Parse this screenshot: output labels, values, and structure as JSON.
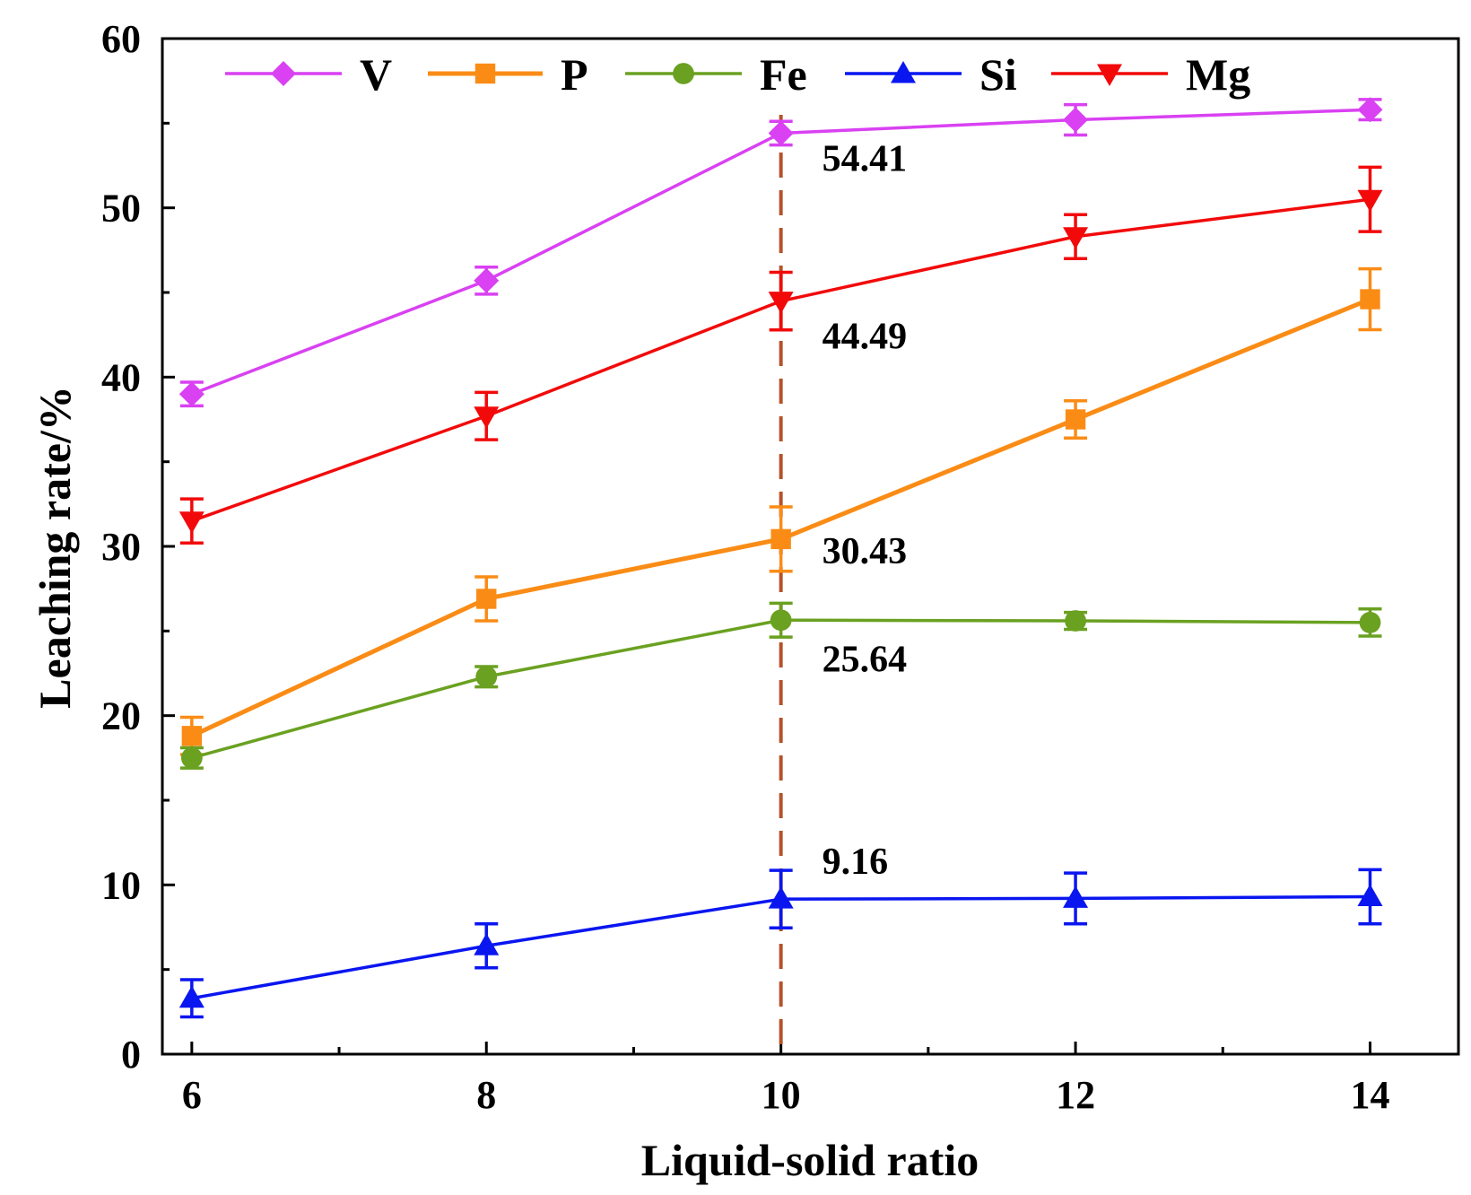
{
  "chart_data": {
    "type": "line",
    "title": "",
    "xlabel": "Liquid-solid ratio",
    "ylabel": "Leaching rate/%",
    "x": [
      6,
      8,
      10,
      12,
      14
    ],
    "xlim": [
      5.8,
      14.6
    ],
    "ylim": [
      0,
      60
    ],
    "xticks": [
      "6",
      "8",
      "10",
      "12",
      "14"
    ],
    "yticks": [
      "0",
      "10",
      "20",
      "30",
      "40",
      "50",
      "60"
    ],
    "grid": false,
    "legend_position": "top",
    "reference_line": {
      "x": 10,
      "color": "#b5532a",
      "style": "dashed"
    },
    "series": [
      {
        "name": "V",
        "color": "#d941f2",
        "marker": "diamond",
        "values": [
          39.0,
          45.7,
          54.41,
          55.2,
          55.8
        ],
        "errors": [
          0.7,
          0.8,
          0.7,
          0.9,
          0.6
        ]
      },
      {
        "name": "P",
        "color": "#fa8c16",
        "marker": "square",
        "values": [
          18.8,
          26.9,
          30.43,
          37.5,
          44.6
        ],
        "errors": [
          1.1,
          1.3,
          1.9,
          1.1,
          1.8
        ]
      },
      {
        "name": "Fe",
        "color": "#6aa121",
        "marker": "circle",
        "values": [
          17.5,
          22.3,
          25.64,
          25.6,
          25.5
        ],
        "errors": [
          0.6,
          0.6,
          1.0,
          0.5,
          0.8
        ]
      },
      {
        "name": "Si",
        "color": "#0a16f0",
        "marker": "triangle-up",
        "values": [
          3.3,
          6.4,
          9.16,
          9.2,
          9.3
        ],
        "errors": [
          1.1,
          1.3,
          1.7,
          1.5,
          1.6
        ]
      },
      {
        "name": "Mg",
        "color": "#f20a0a",
        "marker": "triangle-down",
        "values": [
          31.5,
          37.7,
          44.49,
          48.3,
          50.5
        ],
        "errors": [
          1.3,
          1.4,
          1.7,
          1.3,
          1.9
        ]
      }
    ],
    "annotations": [
      {
        "text": "54.41",
        "x": 10,
        "y": 54.41
      },
      {
        "text": "44.49",
        "x": 10,
        "y": 44.49
      },
      {
        "text": "30.43",
        "x": 10,
        "y": 30.43
      },
      {
        "text": "25.64",
        "x": 10,
        "y": 25.64
      },
      {
        "text": "9.16",
        "x": 10,
        "y": 9.16
      }
    ]
  }
}
